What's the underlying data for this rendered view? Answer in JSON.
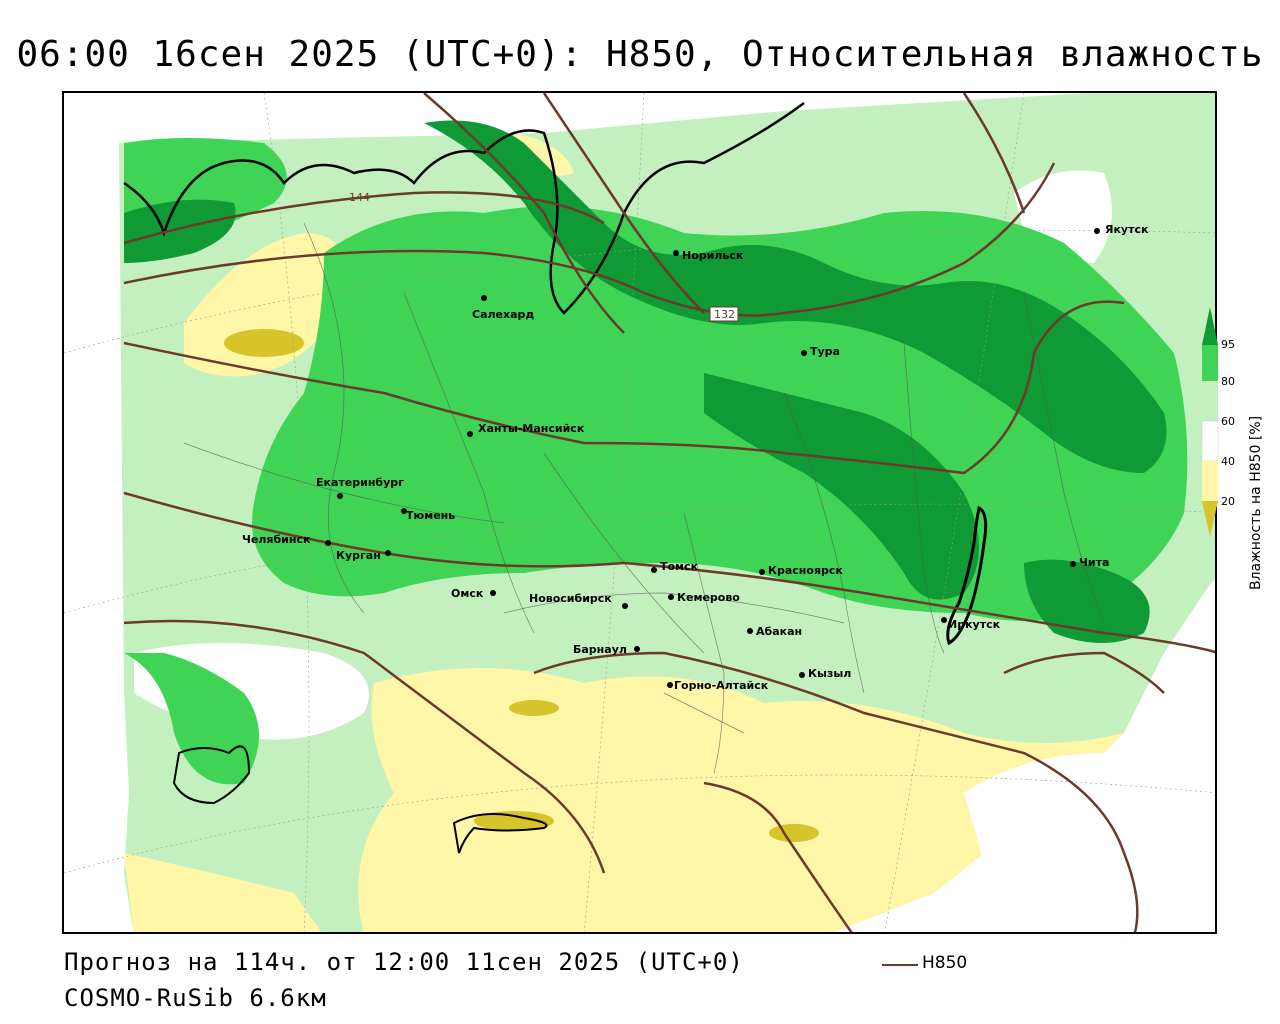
{
  "title": "06:00 16сен 2025 (UTC+0): H850, Относительная влажность",
  "footer": {
    "forecast": "Прогноз на 114ч. от 12:00 11сен 2025 (UTC+0)",
    "model": "COSMO-RuSib 6.6км"
  },
  "legend": {
    "contour_label": "H850",
    "contour_color": "#6b3a2a"
  },
  "colorbar": {
    "title": "Влажность на H850 [%]",
    "ticks": [
      "20",
      "40",
      "60",
      "80",
      "95"
    ],
    "colors": {
      "dry_dark": "#d6c42a",
      "dry": "#fff6a8",
      "neutral": "#ffffff",
      "light_green": "#c4f0c0",
      "green": "#3fd456",
      "dark_green": "#0f9a35"
    }
  },
  "contour_labels": [
    "144",
    "132"
  ],
  "cities": [
    {
      "name": "Якутск"
    },
    {
      "name": "Норильск"
    },
    {
      "name": "Салехард"
    },
    {
      "name": "Тура"
    },
    {
      "name": "Ханты-Мансийск"
    },
    {
      "name": "Екатеринбург"
    },
    {
      "name": "Тюмень"
    },
    {
      "name": "Челябинск"
    },
    {
      "name": "Курган"
    },
    {
      "name": "Омск"
    },
    {
      "name": "Новосибирск"
    },
    {
      "name": "Томск"
    },
    {
      "name": "Кемерово"
    },
    {
      "name": "Красноярск"
    },
    {
      "name": "Абакан"
    },
    {
      "name": "Барнаул"
    },
    {
      "name": "Горно-Алтайск"
    },
    {
      "name": "Кызыл"
    },
    {
      "name": "Иркутск"
    },
    {
      "name": "Чита"
    }
  ]
}
